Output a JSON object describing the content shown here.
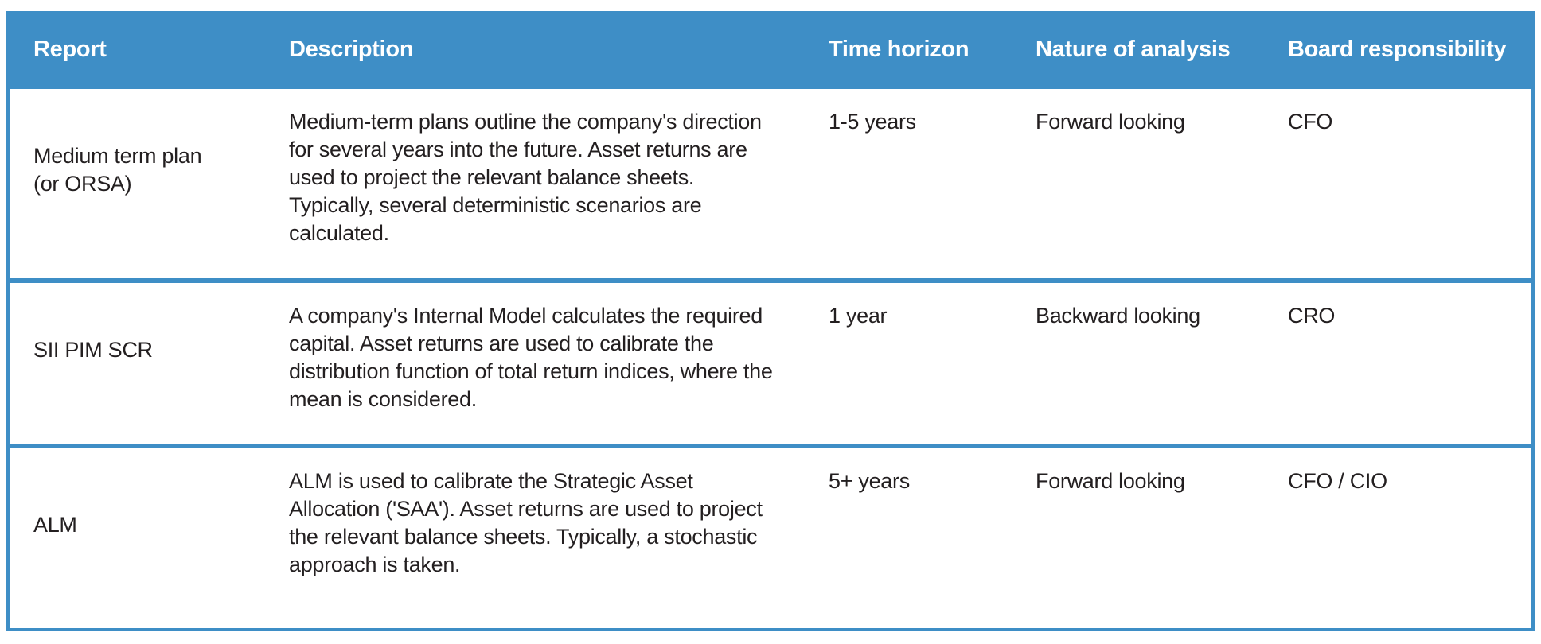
{
  "table": {
    "columns": [
      {
        "key": "report",
        "label": "Report"
      },
      {
        "key": "description",
        "label": "Description"
      },
      {
        "key": "time_horizon",
        "label": "Time horizon"
      },
      {
        "key": "nature_of_analysis",
        "label": "Nature of analysis"
      },
      {
        "key": "board_responsibility",
        "label": "Board responsibility"
      }
    ],
    "rows": [
      {
        "report": "Medium term plan (or ORSA)",
        "description": "Medium-term plans outline the company's direction for several years into the future. Asset returns are used to project the relevant balance sheets. Typically, several deterministic scenarios are calculated.",
        "time_horizon": "1-5 years",
        "nature_of_analysis": "Forward looking",
        "board_responsibility": "CFO"
      },
      {
        "report": "SII PIM SCR",
        "description": "A company's Internal Model calculates the required capital. Asset returns are used to calibrate the distribution function of total return indices, where the mean is considered.",
        "time_horizon": "1 year",
        "nature_of_analysis": "Backward looking",
        "board_responsibility": "CRO"
      },
      {
        "report": "ALM",
        "description": "ALM is used to calibrate the Strategic Asset Allocation ('SAA'). Asset returns are used to project the relevant balance sheets. Typically, a stochastic approach is taken.",
        "time_horizon": "5+ years",
        "nature_of_analysis": "Forward looking",
        "board_responsibility": "CFO / CIO"
      }
    ]
  },
  "colors": {
    "header_bg": "#3E8EC6",
    "border": "#3E8EC6",
    "header_text": "#FFFFFF",
    "body_text": "#231F20",
    "background": "#FFFFFF"
  }
}
